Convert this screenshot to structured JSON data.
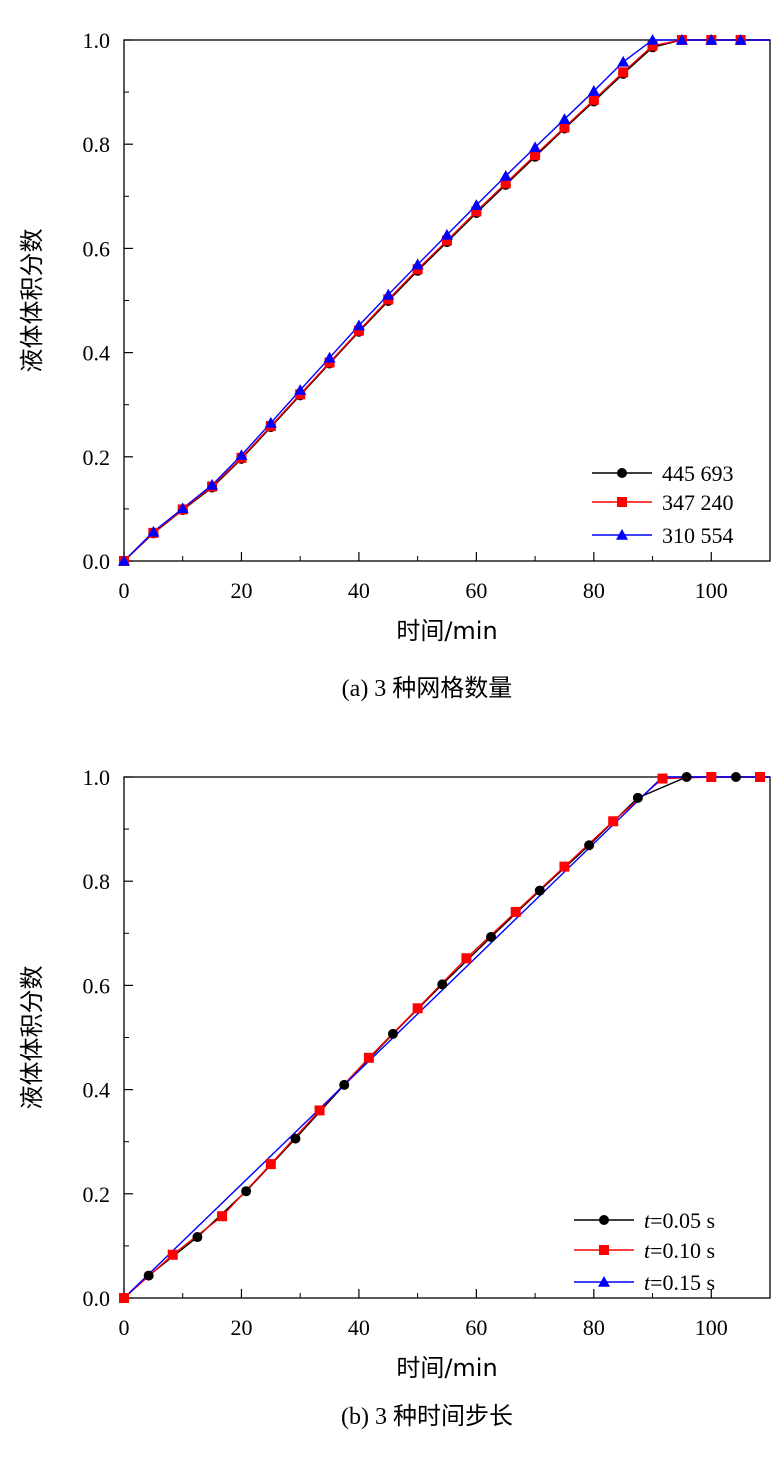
{
  "chart_data": [
    {
      "type": "line",
      "caption": "(a) 3 种网格数量",
      "xlabel": "时间/min",
      "ylabel": "液体体积分数",
      "xlim": [
        0,
        110
      ],
      "ylim": [
        0,
        1.0
      ],
      "xticks": [
        0,
        20,
        40,
        60,
        80,
        100
      ],
      "xtick_labels": [
        "0",
        "20",
        "40",
        "60",
        "80",
        "100"
      ],
      "yticks": [
        0,
        0.2,
        0.4,
        0.6,
        0.8,
        1.0
      ],
      "ytick_labels": [
        "0.0",
        "0.2",
        "0.4",
        "0.6",
        "0.8",
        "1.0"
      ],
      "grid": false,
      "legend_position": "bottom-right",
      "series": [
        {
          "name": "445 693",
          "color": "#000000",
          "marker": "circle",
          "x": [
            0,
            5,
            10,
            15,
            20,
            25,
            30,
            35,
            40,
            45,
            50,
            55,
            60,
            65,
            70,
            75,
            80,
            85,
            90,
            95,
            100,
            105
          ],
          "y": [
            0,
            0.053,
            0.098,
            0.141,
            0.196,
            0.257,
            0.318,
            0.379,
            0.44,
            0.499,
            0.557,
            0.612,
            0.668,
            0.722,
            0.776,
            0.83,
            0.882,
            0.935,
            0.986,
            1.0,
            1.0,
            1.0
          ]
        },
        {
          "name": "347 240",
          "color": "#ff0000",
          "marker": "square",
          "x": [
            0,
            5,
            10,
            15,
            20,
            25,
            30,
            35,
            40,
            45,
            50,
            55,
            60,
            65,
            70,
            75,
            80,
            85,
            90,
            95,
            100,
            105
          ],
          "y": [
            0,
            0.054,
            0.099,
            0.143,
            0.198,
            0.259,
            0.32,
            0.381,
            0.442,
            0.502,
            0.56,
            0.615,
            0.671,
            0.725,
            0.779,
            0.832,
            0.885,
            0.938,
            0.989,
            1.0,
            1.0,
            1.0
          ]
        },
        {
          "name": "310 554",
          "color": "#0000ff",
          "marker": "triangle",
          "x": [
            0,
            5,
            10,
            15,
            20,
            25,
            30,
            35,
            40,
            45,
            50,
            55,
            60,
            65,
            70,
            75,
            80,
            85,
            90,
            95,
            100,
            105
          ],
          "y": [
            0,
            0.056,
            0.101,
            0.146,
            0.203,
            0.265,
            0.328,
            0.39,
            0.452,
            0.511,
            0.569,
            0.626,
            0.683,
            0.739,
            0.794,
            0.848,
            0.902,
            0.958,
            1.0,
            1.0,
            1.0,
            1.0
          ]
        }
      ]
    },
    {
      "type": "line",
      "caption": "(b) 3 种时间步长",
      "xlabel": "时间/min",
      "ylabel": "液体体积分数",
      "xlim": [
        0,
        110
      ],
      "ylim": [
        0,
        1.0
      ],
      "xticks": [
        0,
        20,
        40,
        60,
        80,
        100
      ],
      "xtick_labels": [
        "0",
        "20",
        "40",
        "60",
        "80",
        "100"
      ],
      "yticks": [
        0,
        0.2,
        0.4,
        0.6,
        0.8,
        1.0
      ],
      "ytick_labels": [
        "0.0",
        "0.2",
        "0.4",
        "0.6",
        "0.8",
        "1.0"
      ],
      "grid": false,
      "legend_position": "bottom-right",
      "series": [
        {
          "name": "t=0.05 s",
          "name_italic": "t",
          "name_rest": "=0.05 s",
          "color": "#000000",
          "marker": "circle",
          "x": [
            0,
            4.2,
            12.5,
            20.8,
            29.2,
            37.5,
            45.8,
            54.2,
            62.5,
            70.8,
            79.2,
            87.5,
            95.8,
            104.2
          ],
          "y": [
            0,
            0.043,
            0.117,
            0.205,
            0.306,
            0.409,
            0.507,
            0.602,
            0.693,
            0.782,
            0.869,
            0.96,
            1.0,
            1.0
          ]
        },
        {
          "name": "t=0.10 s",
          "name_italic": "t",
          "name_rest": "=0.10 s",
          "color": "#ff0000",
          "marker": "square",
          "x": [
            0,
            8.3,
            16.7,
            25,
            33.3,
            41.7,
            50,
            58.3,
            66.7,
            75,
            83.3,
            91.7,
            100,
            108.3
          ],
          "y": [
            0,
            0.083,
            0.157,
            0.257,
            0.36,
            0.461,
            0.556,
            0.652,
            0.741,
            0.828,
            0.915,
            0.997,
            1.0,
            1.0
          ]
        },
        {
          "name": "t=0.15 s",
          "name_italic": "t",
          "name_rest": "=0.15 s",
          "color": "#0000ff",
          "marker": "triangle",
          "x": [
            0,
            91.7
          ],
          "y": [
            0,
            1.0
          ]
        }
      ]
    }
  ]
}
